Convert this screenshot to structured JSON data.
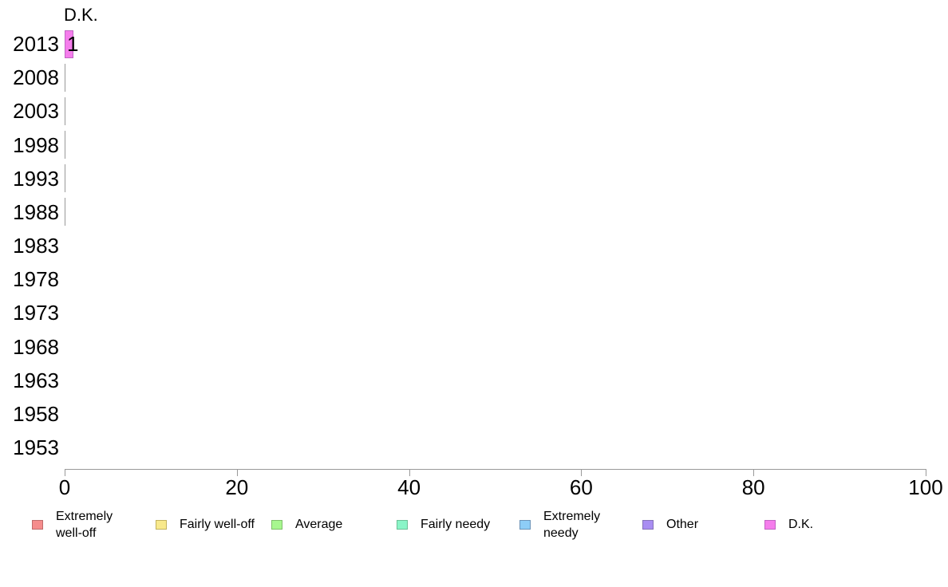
{
  "chart_data": {
    "type": "bar",
    "orientation": "horizontal",
    "annotation": "D.K.",
    "categories": [
      "2013",
      "2008",
      "2003",
      "1998",
      "1993",
      "1988",
      "1983",
      "1978",
      "1973",
      "1968",
      "1963",
      "1958",
      "1953"
    ],
    "xlim": [
      0,
      100
    ],
    "xticks": [
      0,
      20,
      40,
      60,
      80,
      100
    ],
    "series": [
      {
        "name": "Extremely well-off",
        "color": "#f58c8c",
        "border": "#bf6b6b",
        "values": [
          0,
          0,
          0,
          0,
          0,
          0,
          null,
          null,
          null,
          null,
          null,
          null,
          null
        ]
      },
      {
        "name": "Fairly well-off",
        "color": "#f8e98c",
        "border": "#c2b25e",
        "values": [
          0,
          0,
          0,
          0,
          0,
          0,
          null,
          null,
          null,
          null,
          null,
          null,
          null
        ]
      },
      {
        "name": "Average",
        "color": "#a7f78f",
        "border": "#7fbf6b",
        "values": [
          0,
          0,
          0,
          0,
          0,
          0,
          null,
          null,
          null,
          null,
          null,
          null,
          null
        ]
      },
      {
        "name": "Fairly needy",
        "color": "#8af5c8",
        "border": "#6bbf96",
        "values": [
          0,
          0,
          0,
          0,
          0,
          0,
          null,
          null,
          null,
          null,
          null,
          null,
          null
        ]
      },
      {
        "name": "Extremely needy",
        "color": "#8dcdf7",
        "border": "#6b93b8",
        "values": [
          0,
          0,
          0,
          0,
          0,
          0,
          null,
          null,
          null,
          null,
          null,
          null,
          null
        ]
      },
      {
        "name": "Other",
        "color": "#a98df2",
        "border": "#8573b8",
        "values": [
          0,
          0,
          0,
          0,
          0,
          0,
          null,
          null,
          null,
          null,
          null,
          null,
          null
        ]
      },
      {
        "name": "D.K.",
        "color": "#f57dec",
        "border": "#bf64c2",
        "values": [
          1,
          0,
          0,
          0,
          0,
          0,
          null,
          null,
          null,
          null,
          null,
          null,
          null
        ]
      }
    ],
    "legend_position": "bottom",
    "grid": false,
    "axis_color": "#999999",
    "text_color": "#000000",
    "background_color": "#ffffff"
  }
}
